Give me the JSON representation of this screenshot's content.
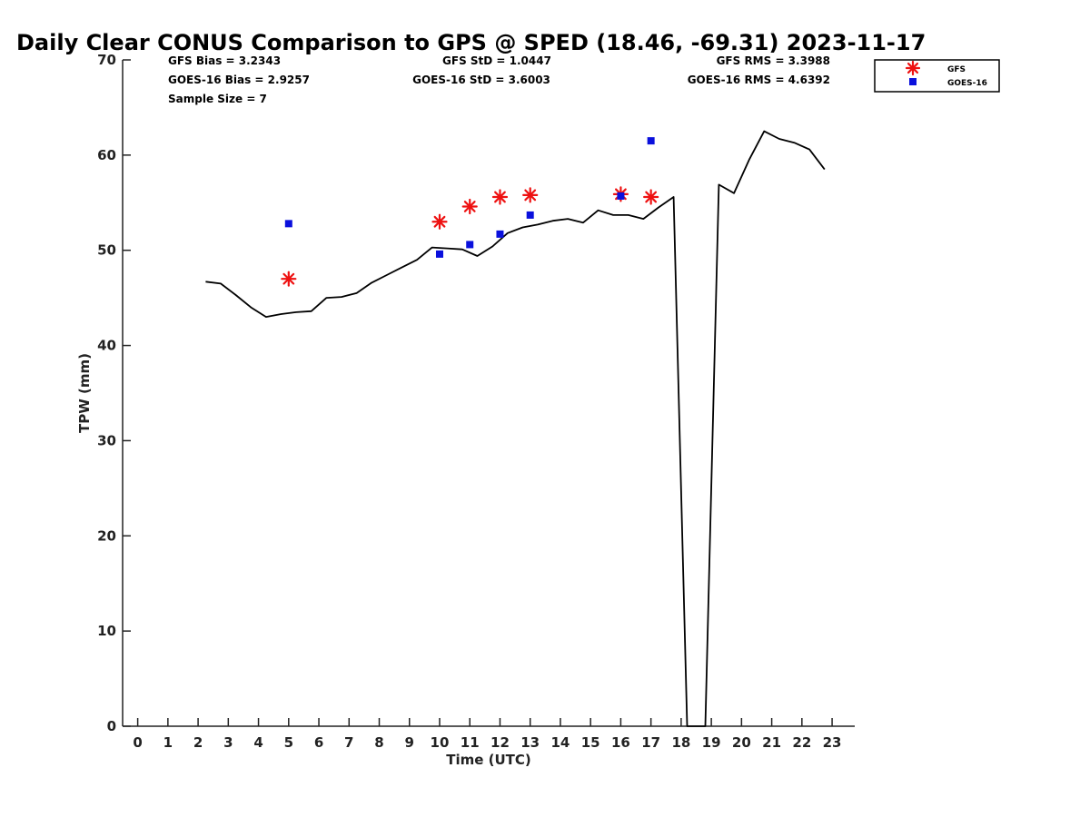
{
  "chart_data": {
    "type": "line",
    "title": "Daily Clear CONUS Comparison to GPS @ SPED (18.46, -69.31) 2023-11-17",
    "xlabel": "Time (UTC)",
    "ylabel": "TPW (mm)",
    "xlim": [
      -0.5,
      23.75
    ],
    "ylim": [
      0,
      70
    ],
    "xticks": [
      0,
      1,
      2,
      3,
      4,
      5,
      6,
      7,
      8,
      9,
      10,
      11,
      12,
      13,
      14,
      15,
      16,
      17,
      18,
      19,
      20,
      21,
      22,
      23
    ],
    "yticks": [
      0,
      10,
      20,
      30,
      40,
      50,
      60,
      70
    ],
    "grid": false,
    "legend_position": "top-right",
    "stats": {
      "gfs_bias": "GFS Bias = 3.2343",
      "goes_bias": "GOES-16 Bias = 2.9257",
      "sample_size": "Sample Size = 7",
      "gfs_std": "GFS StD = 1.0447",
      "goes_std": "GOES-16 StD = 3.6003",
      "gfs_rms": "GFS RMS = 3.3988",
      "goes_rms": "GOES-16 RMS = 4.6392"
    },
    "series": [
      {
        "kind": "line",
        "color": "#000000",
        "x": [
          2.25,
          2.75,
          3.25,
          3.75,
          4.25,
          4.75,
          5.25,
          5.75,
          6.25,
          6.75,
          7.25,
          7.75,
          8.25,
          8.75,
          9.25,
          9.75,
          10.25,
          10.75,
          11.25,
          11.75,
          12.25,
          12.75,
          13.25,
          13.75,
          14.25,
          14.75,
          15.25,
          15.75,
          16.25,
          16.75,
          17.25,
          17.75,
          18.2,
          18.8,
          19.25,
          19.75,
          20.25,
          20.75,
          21.25,
          21.75,
          22.25,
          22.75
        ],
        "y": [
          46.7,
          46.5,
          45.3,
          44.0,
          43.0,
          43.3,
          43.5,
          43.6,
          45.0,
          45.1,
          45.5,
          46.6,
          47.4,
          48.2,
          49.0,
          50.3,
          50.2,
          50.1,
          49.4,
          50.4,
          51.8,
          52.4,
          52.7,
          53.1,
          53.3,
          52.9,
          54.2,
          53.7,
          53.7,
          53.3,
          54.5,
          55.6,
          0,
          0,
          56.9,
          56.0,
          59.5,
          62.5,
          61.7,
          61.3,
          60.6,
          58.5
        ]
      },
      {
        "name": "GFS",
        "kind": "scatter",
        "marker": "asterisk",
        "color": "#ee1111",
        "x": [
          5,
          10,
          11,
          12,
          13,
          16,
          17
        ],
        "y": [
          47.0,
          53.0,
          54.6,
          55.6,
          55.8,
          55.9,
          55.6
        ]
      },
      {
        "name": "GOES-16",
        "kind": "scatter",
        "marker": "square",
        "color": "#0a10dd",
        "x": [
          5,
          10,
          11,
          12,
          13,
          16,
          17
        ],
        "y": [
          52.8,
          49.6,
          50.6,
          51.7,
          53.7,
          55.7,
          61.5
        ]
      }
    ]
  }
}
